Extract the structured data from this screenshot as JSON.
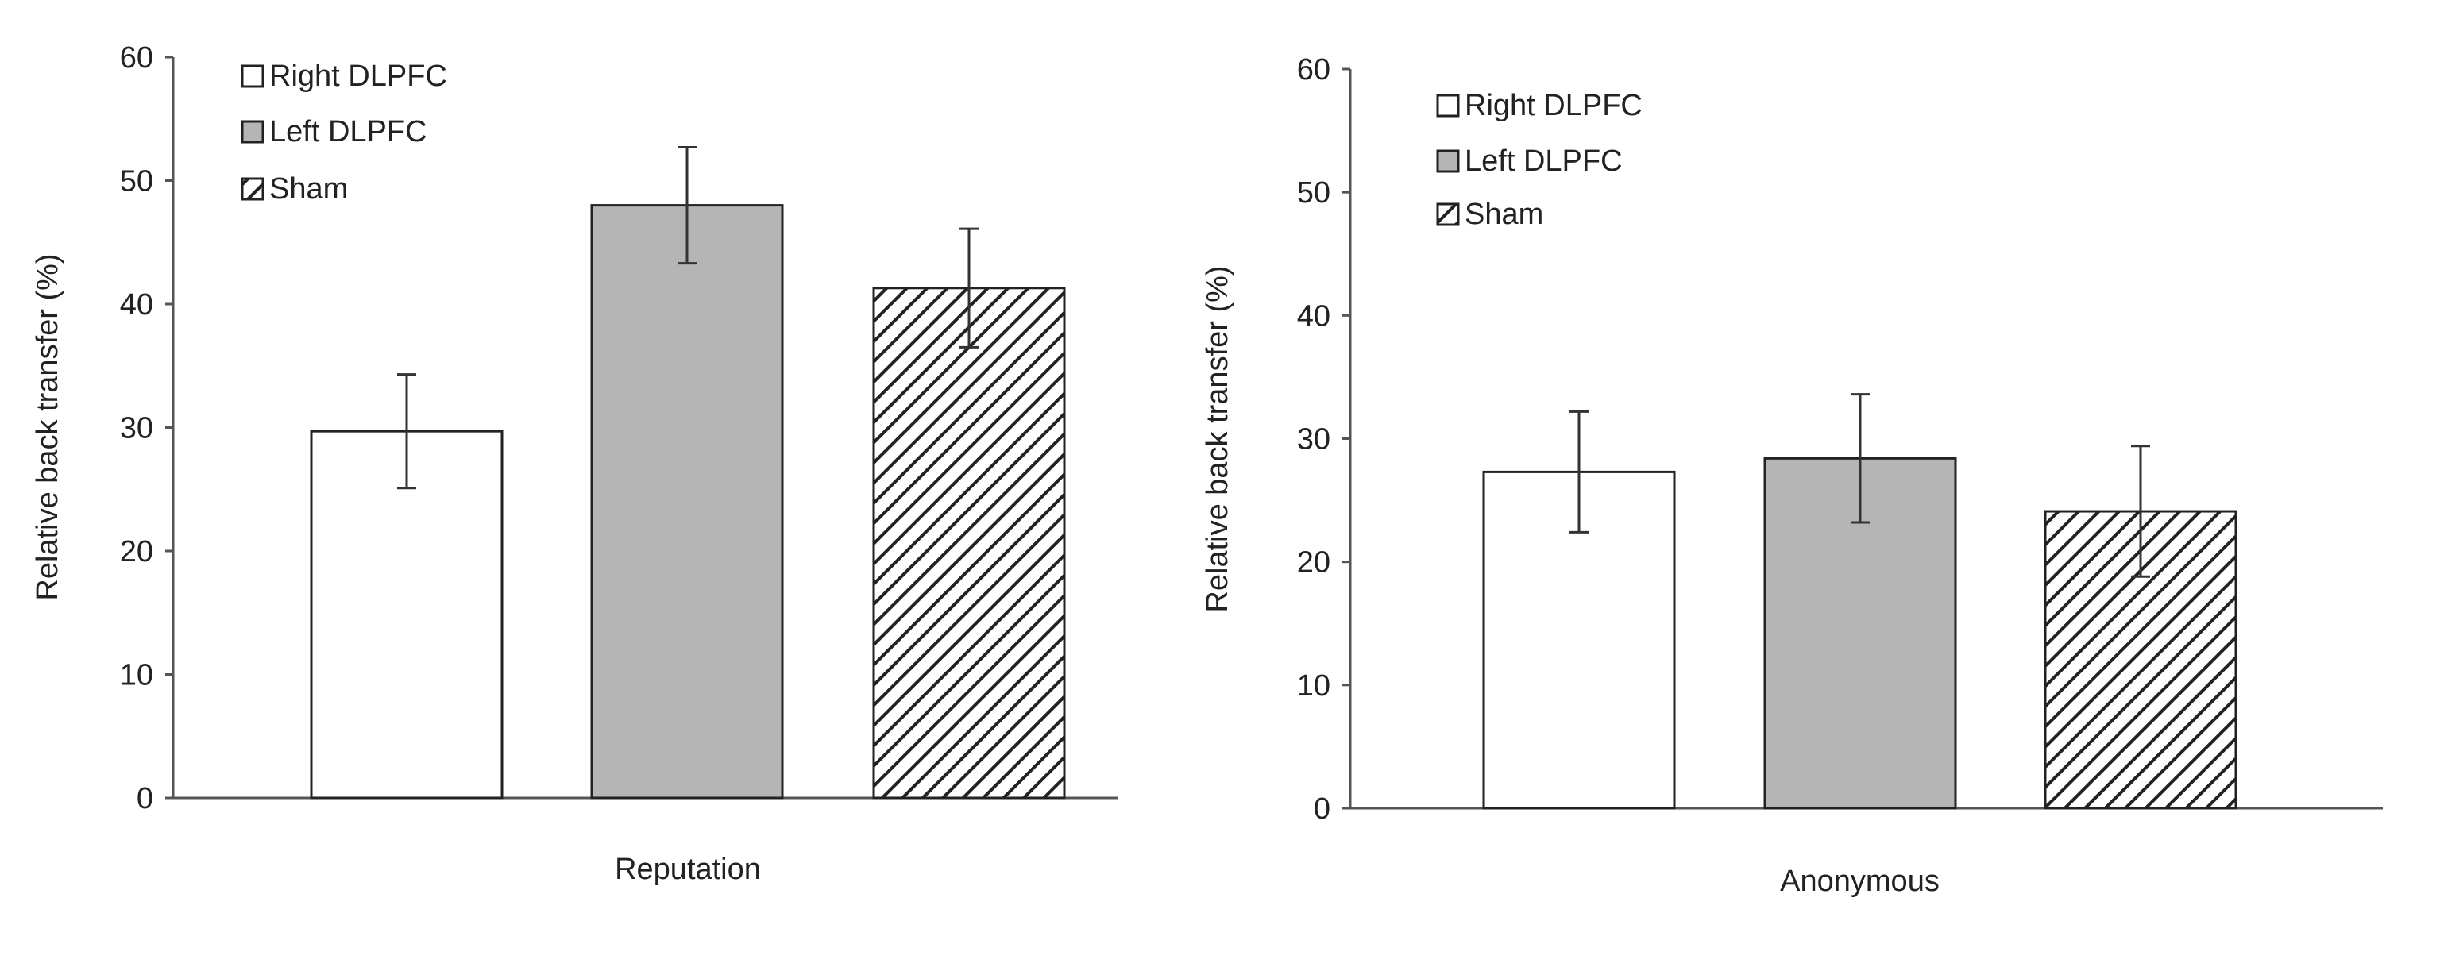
{
  "chart_data": [
    {
      "type": "bar",
      "categories": [
        "Reputation"
      ],
      "xlabel": "Reputation",
      "ylabel": "Relative back transfer (%)",
      "ylim": [
        0,
        60
      ],
      "yticks": [
        0,
        10,
        20,
        30,
        40,
        50,
        60
      ],
      "legend_position": "top-left",
      "grid": false,
      "series": [
        {
          "name": "Right DLPFC",
          "values": [
            29.7
          ],
          "error": [
            4.6
          ],
          "fill": "white"
        },
        {
          "name": "Left DLPFC",
          "values": [
            48.0
          ],
          "error": [
            4.7
          ],
          "fill": "gray"
        },
        {
          "name": "Sham",
          "values": [
            41.3
          ],
          "error": [
            4.8
          ],
          "fill": "hatched"
        }
      ]
    },
    {
      "type": "bar",
      "categories": [
        "Anonymous"
      ],
      "xlabel": "Anonymous",
      "ylabel": "Relative back transfer (%)",
      "ylim": [
        0,
        60
      ],
      "yticks": [
        0,
        10,
        20,
        30,
        40,
        50,
        60
      ],
      "legend_position": "top-left",
      "grid": false,
      "series": [
        {
          "name": "Right DLPFC",
          "values": [
            27.3
          ],
          "error": [
            4.9
          ],
          "fill": "white"
        },
        {
          "name": "Left DLPFC",
          "values": [
            28.4
          ],
          "error": [
            5.2
          ],
          "fill": "gray"
        },
        {
          "name": "Sham",
          "values": [
            24.1
          ],
          "error": [
            5.3
          ],
          "fill": "hatched"
        }
      ]
    }
  ],
  "colors": {
    "gray_fill": "#b5b5b5",
    "bar_stroke": "#222222",
    "axis": "#555555",
    "hatch": "#222222"
  }
}
